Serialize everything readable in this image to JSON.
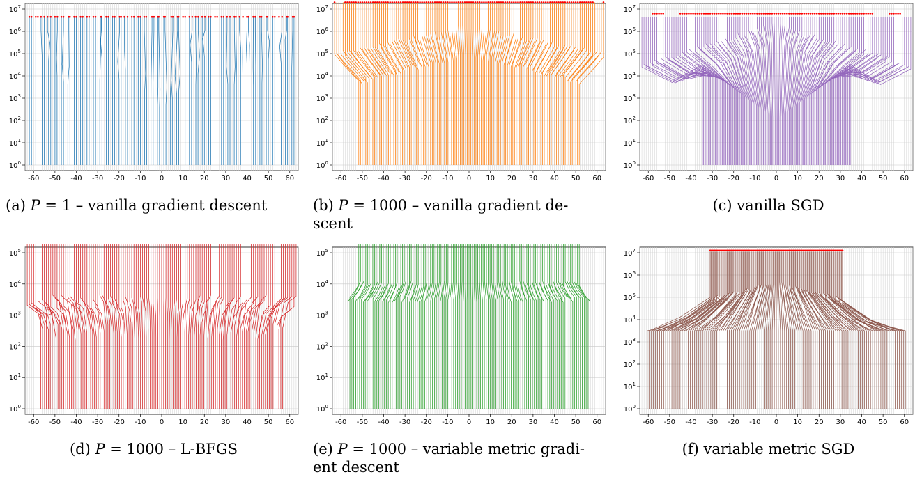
{
  "panels": [
    {
      "id": "a",
      "caption_prefix": "(a) ",
      "caption_var": "P",
      "caption_rest": " = 1 – vanilla gradient descent",
      "caption_line2": "",
      "color": "#1f77b4",
      "ylim_exp": [
        0,
        7
      ],
      "yticks_exp": [
        0,
        1,
        2,
        3,
        4,
        5,
        6,
        7
      ],
      "top_exp": 6.65,
      "layout": "gd1"
    },
    {
      "id": "b",
      "caption_prefix": "(b) ",
      "caption_var": "P",
      "caption_rest": " = 1000 – vanilla gradient de-",
      "caption_line2": "scent",
      "color": "#ff7f0e",
      "ylim_exp": [
        0,
        7
      ],
      "yticks_exp": [
        0,
        1,
        2,
        3,
        4,
        5,
        6,
        7
      ],
      "top_exp": 7.3,
      "layout": "gd1000"
    },
    {
      "id": "c",
      "caption_prefix": "(c) ",
      "caption_var": "",
      "caption_rest": "vanilla SGD",
      "caption_line2": "",
      "color": "#9467bd",
      "ylim_exp": [
        0,
        7
      ],
      "yticks_exp": [
        0,
        1,
        2,
        3,
        4,
        5,
        6,
        7
      ],
      "top_exp": 6.8,
      "layout": "sgd"
    },
    {
      "id": "d",
      "caption_prefix": "(d) ",
      "caption_var": "P",
      "caption_rest": " = 1000 – L-BFGS",
      "caption_line2": "",
      "color": "#d62728",
      "ylim_exp": [
        0,
        5
      ],
      "yticks_exp": [
        0,
        1,
        2,
        3,
        4,
        5
      ],
      "top_exp": 5.35,
      "layout": "lbfgs"
    },
    {
      "id": "e",
      "caption_prefix": "(e) ",
      "caption_var": "P",
      "caption_rest": " = 1000 – variable metric gradi-",
      "caption_line2": "ent descent",
      "color": "#2ca02c",
      "ylim_exp": [
        0,
        5
      ],
      "yticks_exp": [
        0,
        1,
        2,
        3,
        4,
        5
      ],
      "top_exp": 5.35,
      "layout": "vmgd"
    },
    {
      "id": "f",
      "caption_prefix": "(f) ",
      "caption_var": "",
      "caption_rest": "variable metric SGD",
      "caption_line2": "",
      "color": "#8c564b",
      "ylim_exp": [
        0,
        7
      ],
      "yticks_exp": [
        0,
        1,
        2,
        3,
        4,
        5,
        6,
        7
      ],
      "top_exp": 7.1,
      "layout": "vmsgd"
    }
  ],
  "xticks": [
    -60,
    -50,
    -40,
    -30,
    -20,
    -10,
    0,
    10,
    20,
    30,
    40,
    50,
    60
  ],
  "marker_color": "#ff0000",
  "chart_data": [
    {
      "type": "line",
      "subplot": "a",
      "xlim": [
        -64,
        64
      ],
      "yscale": "log",
      "ylim": [
        1,
        10000000
      ],
      "grid": true
    },
    {
      "type": "line",
      "subplot": "b",
      "xlim": [
        -64,
        64
      ],
      "yscale": "log",
      "ylim": [
        1,
        10000000
      ],
      "grid": true
    },
    {
      "type": "line",
      "subplot": "c",
      "xlim": [
        -64,
        64
      ],
      "yscale": "log",
      "ylim": [
        1,
        10000000
      ],
      "grid": true
    },
    {
      "type": "line",
      "subplot": "d",
      "xlim": [
        -64,
        64
      ],
      "yscale": "log",
      "ylim": [
        1,
        100000
      ],
      "grid": true
    },
    {
      "type": "line",
      "subplot": "e",
      "xlim": [
        -64,
        64
      ],
      "yscale": "log",
      "ylim": [
        1,
        100000
      ],
      "grid": true
    },
    {
      "type": "line",
      "subplot": "f",
      "xlim": [
        -64,
        64
      ],
      "yscale": "log",
      "ylim": [
        1,
        10000000
      ],
      "grid": true
    }
  ]
}
